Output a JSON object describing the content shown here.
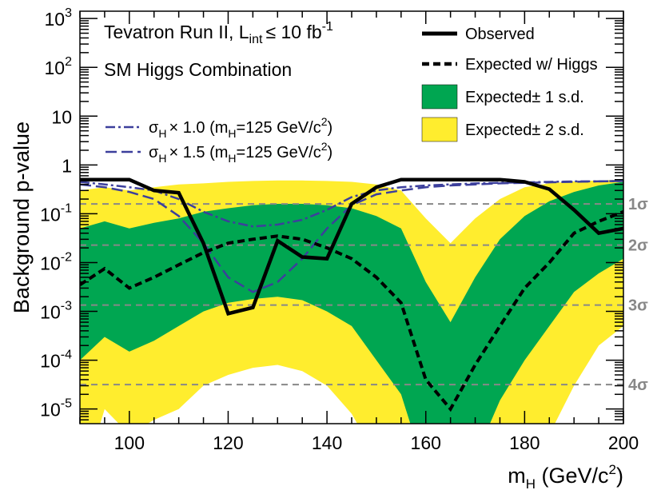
{
  "chart_data": {
    "type": "line",
    "title_line1": "Tevatron Run II, L",
    "title_line1_sub": "int",
    "title_line1_rest": "≤ 10 fb",
    "title_line1_sup": "-1",
    "title_line2": "SM Higgs Combination",
    "xlabel_main": "m",
    "xlabel_sub": "H",
    "xlabel_rest": " (GeV/c",
    "xlabel_sup": "2",
    "xlabel_end": ")",
    "ylabel": "Background p-value",
    "xlim": [
      90,
      200
    ],
    "ylim_log10": [
      -5.3,
      3.15
    ],
    "x_ticks": [
      100,
      120,
      140,
      160,
      180,
      200
    ],
    "x_tick_labels": [
      "100",
      "120",
      "140",
      "160",
      "180",
      "200"
    ],
    "y_ticks": [
      {
        "exp": -5,
        "base": "10",
        "sup": "-5"
      },
      {
        "exp": -4,
        "base": "10",
        "sup": "-4"
      },
      {
        "exp": -3,
        "base": "10",
        "sup": "-3"
      },
      {
        "exp": -2,
        "base": "10",
        "sup": "-2"
      },
      {
        "exp": -1,
        "base": "10",
        "sup": "-1"
      },
      {
        "exp": 0,
        "base": "1",
        "sup": ""
      },
      {
        "exp": 1,
        "base": "10",
        "sup": ""
      },
      {
        "exp": 2,
        "base": "10",
        "sup": "2"
      },
      {
        "exp": 3,
        "base": "10",
        "sup": "3"
      }
    ],
    "significance_lines": [
      {
        "label": "1σ",
        "p": 0.1587
      },
      {
        "label": "2σ",
        "p": 0.02275
      },
      {
        "label": "3σ",
        "p": 0.00135
      },
      {
        "label": "4σ",
        "p": 3.17e-05
      }
    ],
    "mass": [
      90,
      95,
      100,
      105,
      110,
      115,
      120,
      125,
      130,
      135,
      140,
      145,
      150,
      155,
      160,
      165,
      170,
      175,
      180,
      185,
      190,
      195,
      200
    ],
    "observed": [
      0.5,
      0.5,
      0.5,
      0.3,
      0.27,
      0.025,
      0.0009,
      0.0012,
      0.028,
      0.013,
      0.012,
      0.16,
      0.35,
      0.5,
      0.5,
      0.5,
      0.5,
      0.5,
      0.45,
      0.32,
      0.12,
      0.04,
      0.05
    ],
    "expected": [
      0.0035,
      0.0075,
      0.003,
      0.005,
      0.009,
      0.016,
      0.025,
      0.03,
      0.035,
      0.03,
      0.02,
      0.012,
      0.005,
      0.0015,
      4e-05,
      1e-05,
      8e-05,
      0.0005,
      0.003,
      0.01,
      0.04,
      0.07,
      0.11
    ],
    "band1_lo": [
      0.0001,
      0.0003,
      0.00015,
      0.00025,
      0.0005,
      0.001,
      0.0015,
      0.0018,
      0.002,
      0.0017,
      0.001,
      0.0005,
      0.0001,
      2e-05,
      5e-07,
      2e-07,
      1e-06,
      1.5e-05,
      0.0001,
      0.0005,
      0.0025,
      0.006,
      0.012
    ],
    "band1_hi": [
      0.05,
      0.07,
      0.05,
      0.065,
      0.08,
      0.11,
      0.13,
      0.15,
      0.16,
      0.16,
      0.15,
      0.13,
      0.09,
      0.05,
      0.004,
      0.0006,
      0.005,
      0.03,
      0.09,
      0.18,
      0.28,
      0.38,
      0.45
    ],
    "band2_lo": [
      2e-07,
      1e-05,
      3e-06,
      6e-06,
      1e-05,
      3e-05,
      5e-05,
      7e-05,
      8e-05,
      6e-05,
      3e-05,
      8e-06,
      1e-06,
      2e-07,
      2e-07,
      2e-07,
      2e-07,
      2e-07,
      3e-07,
      3e-06,
      3e-05,
      0.0002,
      0.0005
    ],
    "band2_hi": [
      0.3,
      0.35,
      0.3,
      0.35,
      0.4,
      0.42,
      0.45,
      0.47,
      0.48,
      0.48,
      0.47,
      0.45,
      0.4,
      0.3,
      0.08,
      0.025,
      0.08,
      0.2,
      0.35,
      0.42,
      0.46,
      0.48,
      0.5
    ],
    "sig_1p0": [
      0.45,
      0.4,
      0.35,
      0.3,
      0.2,
      0.11,
      0.07,
      0.055,
      0.06,
      0.075,
      0.12,
      0.22,
      0.3,
      0.35,
      0.38,
      0.4,
      0.42,
      0.43,
      0.44,
      0.45,
      0.46,
      0.46,
      0.47
    ],
    "sig_1p5": [
      0.4,
      0.35,
      0.28,
      0.2,
      0.09,
      0.025,
      0.005,
      0.0025,
      0.004,
      0.012,
      0.05,
      0.15,
      0.25,
      0.3,
      0.35,
      0.38,
      0.4,
      0.42,
      0.43,
      0.44,
      0.45,
      0.46,
      0.47
    ],
    "colors": {
      "band1": "#00a651",
      "band2": "#ffed2e",
      "observed": "#000000",
      "expected": "#000000",
      "signal": "#3c3f9c",
      "sigma_lines": "#888888"
    },
    "legend": [
      {
        "key": "observed",
        "label": "Observed"
      },
      {
        "key": "expected",
        "label": "Expected w/ Higgs"
      },
      {
        "key": "band1",
        "label": "Expected± 1 s.d."
      },
      {
        "key": "band2",
        "label": "Expected± 2 s.d."
      }
    ],
    "signal_legend": [
      {
        "key": "sig_1p0",
        "sigma": "σ",
        "sigma_sub": "H",
        "mult": "× 1.0 (m",
        "m_sub": "H",
        "rest": "=125 GeV/c",
        "sup": "2",
        "end": ")"
      },
      {
        "key": "sig_1p5",
        "sigma": "σ",
        "sigma_sub": "H",
        "mult": "× 1.5 (m",
        "m_sub": "H",
        "rest": "=125 GeV/c",
        "sup": "2",
        "end": ")"
      }
    ]
  }
}
